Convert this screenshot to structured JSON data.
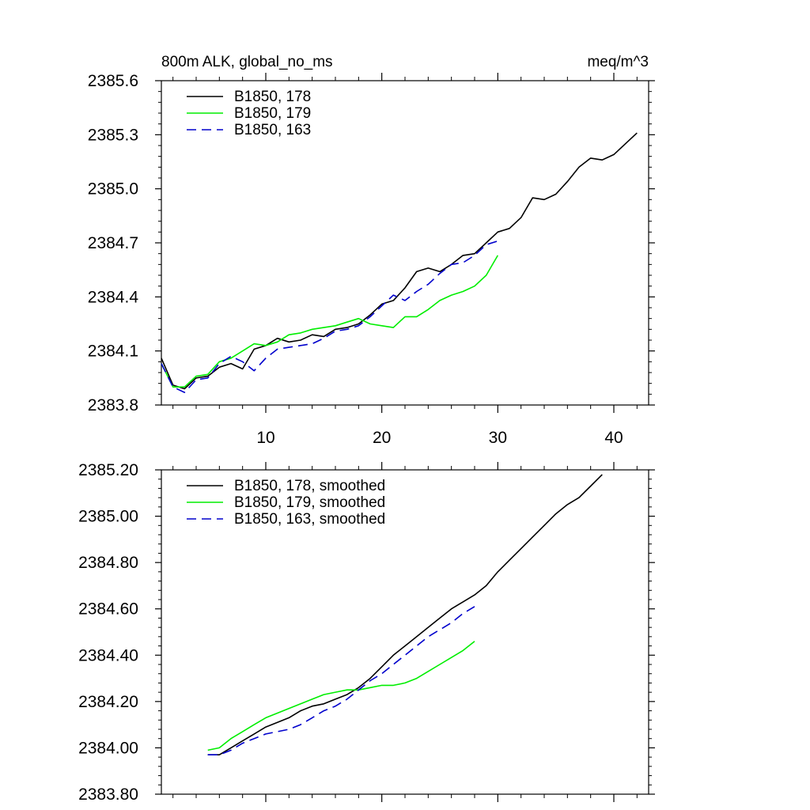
{
  "chart_data": [
    {
      "type": "line",
      "title_left": "800m ALK, global_no_ms",
      "title_right": "meq/m^3",
      "xlim": [
        1,
        43
      ],
      "ylim": [
        2383.8,
        2385.6
      ],
      "xticks": [
        10,
        20,
        30,
        40
      ],
      "xtick_labels": [
        "10",
        "20",
        "30",
        "40"
      ],
      "yticks": [
        2383.8,
        2384.1,
        2384.4,
        2384.7,
        2385.0,
        2385.3,
        2385.6
      ],
      "ytick_labels": [
        "2383.8",
        "2384.1",
        "2384.4",
        "2384.7",
        "2385.0",
        "2385.3",
        "2385.6"
      ],
      "legend_position": "top-left",
      "series": [
        {
          "name": "B1850, 178",
          "color": "#000000",
          "dash": "solid",
          "x": [
            1,
            2,
            3,
            4,
            5,
            6,
            7,
            8,
            9,
            10,
            11,
            12,
            13,
            14,
            15,
            16,
            17,
            18,
            19,
            20,
            21,
            22,
            23,
            24,
            25,
            26,
            27,
            28,
            29,
            30,
            31,
            32,
            33,
            34,
            35,
            36,
            37,
            38,
            39,
            40,
            41,
            42
          ],
          "y": [
            2384.06,
            2383.91,
            2383.89,
            2383.95,
            2383.96,
            2384.01,
            2384.03,
            2384.0,
            2384.11,
            2384.13,
            2384.17,
            2384.15,
            2384.16,
            2384.19,
            2384.18,
            2384.22,
            2384.23,
            2384.25,
            2384.3,
            2384.36,
            2384.38,
            2384.45,
            2384.54,
            2384.56,
            2384.54,
            2384.58,
            2384.63,
            2384.64,
            2384.7,
            2384.76,
            2384.78,
            2384.84,
            2384.95,
            2384.94,
            2384.97,
            2385.04,
            2385.12,
            2385.17,
            2385.16,
            2385.19,
            2385.25,
            2385.31
          ]
        },
        {
          "name": "B1850, 179",
          "color": "#00ee00",
          "dash": "solid",
          "x": [
            1,
            2,
            3,
            4,
            5,
            6,
            7,
            8,
            9,
            10,
            11,
            12,
            13,
            14,
            15,
            16,
            17,
            18,
            19,
            20,
            21,
            22,
            23,
            24,
            25,
            26,
            27,
            28,
            29,
            30
          ],
          "y": [
            2384.03,
            2383.9,
            2383.9,
            2383.96,
            2383.97,
            2384.04,
            2384.06,
            2384.1,
            2384.14,
            2384.13,
            2384.15,
            2384.19,
            2384.2,
            2384.22,
            2384.23,
            2384.24,
            2384.26,
            2384.28,
            2384.25,
            2384.24,
            2384.23,
            2384.29,
            2384.29,
            2384.33,
            2384.38,
            2384.41,
            2384.43,
            2384.46,
            2384.52,
            2384.63
          ]
        },
        {
          "name": "B1850, 163",
          "color": "#0000cc",
          "dash": "dashed",
          "x": [
            1,
            2,
            3,
            4,
            5,
            6,
            7,
            8,
            9,
            10,
            11,
            12,
            13,
            14,
            15,
            16,
            17,
            18,
            19,
            20,
            21,
            22,
            23,
            24,
            25,
            26,
            27,
            28,
            29,
            30
          ],
          "y": [
            2384.03,
            2383.9,
            2383.87,
            2383.94,
            2383.95,
            2384.03,
            2384.07,
            2384.04,
            2383.99,
            2384.06,
            2384.11,
            2384.12,
            2384.13,
            2384.14,
            2384.17,
            2384.21,
            2384.22,
            2384.24,
            2384.29,
            2384.35,
            2384.41,
            2384.38,
            2384.43,
            2384.47,
            2384.53,
            2384.58,
            2384.59,
            2384.63,
            2384.69,
            2384.71
          ]
        }
      ]
    },
    {
      "type": "line",
      "xlim": [
        1,
        43
      ],
      "ylim": [
        2383.8,
        2385.2
      ],
      "xticks": [
        10,
        20,
        30,
        40
      ],
      "yticks": [
        2383.8,
        2384.0,
        2384.2,
        2384.4,
        2384.6,
        2384.8,
        2385.0,
        2385.2
      ],
      "ytick_labels": [
        "2383.80",
        "2384.00",
        "2384.20",
        "2384.40",
        "2384.60",
        "2384.80",
        "2385.00",
        "2385.20"
      ],
      "legend_position": "top-left",
      "series": [
        {
          "name": "B1850, 178, smoothed",
          "color": "#000000",
          "dash": "solid",
          "x": [
            5,
            6,
            7,
            8,
            9,
            10,
            11,
            12,
            13,
            14,
            15,
            16,
            17,
            18,
            19,
            20,
            21,
            22,
            23,
            24,
            25,
            26,
            27,
            28,
            29,
            30,
            31,
            32,
            33,
            34,
            35,
            36,
            37,
            38,
            39
          ],
          "y": [
            2383.97,
            2383.97,
            2384.0,
            2384.03,
            2384.06,
            2384.09,
            2384.11,
            2384.13,
            2384.16,
            2384.18,
            2384.19,
            2384.21,
            2384.23,
            2384.26,
            2384.3,
            2384.35,
            2384.4,
            2384.44,
            2384.48,
            2384.52,
            2384.56,
            2384.6,
            2384.63,
            2384.66,
            2384.7,
            2384.76,
            2384.81,
            2384.86,
            2384.91,
            2384.96,
            2385.01,
            2385.05,
            2385.08,
            2385.13,
            2385.18
          ]
        },
        {
          "name": "B1850, 179, smoothed",
          "color": "#00ee00",
          "dash": "solid",
          "x": [
            5,
            6,
            7,
            8,
            9,
            10,
            11,
            12,
            13,
            14,
            15,
            16,
            17,
            18,
            19,
            20,
            21,
            22,
            23,
            24,
            25,
            26,
            27,
            28
          ],
          "y": [
            2383.99,
            2384.0,
            2384.04,
            2384.07,
            2384.1,
            2384.13,
            2384.15,
            2384.17,
            2384.19,
            2384.21,
            2384.23,
            2384.24,
            2384.25,
            2384.25,
            2384.26,
            2384.27,
            2384.27,
            2384.28,
            2384.3,
            2384.33,
            2384.36,
            2384.39,
            2384.42,
            2384.46
          ]
        },
        {
          "name": "B1850, 163, smoothed",
          "color": "#0000cc",
          "dash": "dashed",
          "x": [
            5,
            6,
            7,
            8,
            9,
            10,
            11,
            12,
            13,
            14,
            15,
            16,
            17,
            18,
            19,
            20,
            21,
            22,
            23,
            24,
            25,
            26,
            27,
            28
          ],
          "y": [
            2383.97,
            2383.97,
            2383.99,
            2384.02,
            2384.04,
            2384.06,
            2384.07,
            2384.08,
            2384.1,
            2384.13,
            2384.16,
            2384.18,
            2384.21,
            2384.25,
            2384.29,
            2384.32,
            2384.36,
            2384.4,
            2384.44,
            2384.48,
            2384.51,
            2384.54,
            2384.58,
            2384.61
          ]
        }
      ]
    }
  ]
}
